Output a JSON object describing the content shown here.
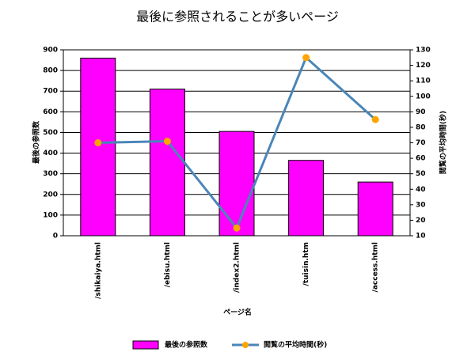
{
  "chart_data": {
    "type": "bar",
    "title": "最後に参照されることが多いページ",
    "x_label": "ページ名",
    "y_label": "最後の参照数",
    "y2_label": "閲覧の平均時間(秒)",
    "categories": [
      "/shikaiya.html",
      "/ebisu.html",
      "/index2.html",
      "/tuisin.htm",
      "/access.html"
    ],
    "series": [
      {
        "name": "最後の参照数",
        "type": "bar",
        "color": "#ff00ff",
        "values": [
          860,
          710,
          505,
          365,
          260
        ]
      },
      {
        "name": "閲覧の平均時間(秒)",
        "type": "line",
        "axis": "y2",
        "color": "#4a86b8",
        "marker_color": "#ffa500",
        "values": [
          70,
          71,
          15,
          125,
          85
        ]
      }
    ],
    "ylim": [
      0,
      900
    ],
    "yticks": [
      0,
      100,
      200,
      300,
      400,
      500,
      600,
      700,
      800,
      900
    ],
    "y2lim": [
      10,
      130
    ],
    "y2ticks": [
      10,
      20,
      30,
      40,
      50,
      60,
      70,
      80,
      90,
      100,
      110,
      120,
      130
    ],
    "grid": true,
    "legend": "bottom"
  }
}
